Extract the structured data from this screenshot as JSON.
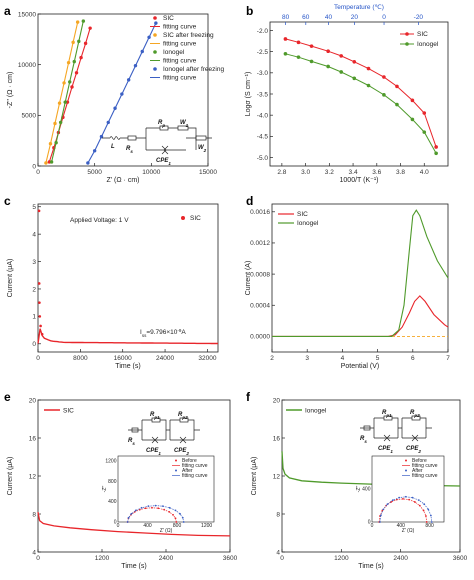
{
  "colors": {
    "red": "#e8262b",
    "green": "#4f9a2b",
    "orange": "#f5a623",
    "blue": "#3b5fc4",
    "green_light": "#6fbf3a"
  },
  "chart_data": [
    {
      "id": "a",
      "panel_label": "a",
      "type": "scatter",
      "xlabel": "Z' (Ω · cm)",
      "ylabel": "-Z'' (Ω · cm)",
      "xlim": [
        0,
        15000
      ],
      "ylim": [
        0,
        15000
      ],
      "x_ticks": [
        "0",
        "5000",
        "10000",
        "15000"
      ],
      "y_ticks": [
        "0",
        "5000",
        "10000",
        "15000"
      ],
      "legend": [
        "SIC",
        "fitting curve",
        "SIC after freezing",
        "fitting curve",
        "Ionogel",
        "fitting curve",
        "Ionogel after freezing",
        "fitting curve"
      ],
      "series": [
        {
          "name": "SIC",
          "color": "#e8262b",
          "points": [
            [
              1000,
              400
            ],
            [
              1400,
              1800
            ],
            [
              1800,
              3300
            ],
            [
              2200,
              4800
            ],
            [
              2600,
              6300
            ],
            [
              3000,
              7800
            ],
            [
              3400,
              9200
            ],
            [
              3800,
              10700
            ],
            [
              4200,
              12100
            ],
            [
              4600,
              13600
            ]
          ]
        },
        {
          "name": "SIC after freezing",
          "color": "#f5a623",
          "points": [
            [
              700,
              300
            ],
            [
              1100,
              2200
            ],
            [
              1500,
              4200
            ],
            [
              1900,
              6200
            ],
            [
              2300,
              8200
            ],
            [
              2700,
              10200
            ],
            [
              3100,
              12200
            ],
            [
              3500,
              14200
            ]
          ]
        },
        {
          "name": "Ionogel",
          "color": "#4f9a2b",
          "points": [
            [
              1200,
              400
            ],
            [
              1600,
              2300
            ],
            [
              2000,
              4300
            ],
            [
              2400,
              6300
            ],
            [
              2800,
              8300
            ],
            [
              3200,
              10300
            ],
            [
              3600,
              12300
            ],
            [
              4000,
              14300
            ]
          ]
        },
        {
          "name": "Ionogel after freezing",
          "color": "#3b5fc4",
          "points": [
            [
              4400,
              300
            ],
            [
              5000,
              1500
            ],
            [
              5600,
              2900
            ],
            [
              6200,
              4300
            ],
            [
              6800,
              5700
            ],
            [
              7400,
              7100
            ],
            [
              8000,
              8500
            ],
            [
              8600,
              9900
            ],
            [
              9200,
              11300
            ],
            [
              9800,
              12700
            ],
            [
              10400,
              14100
            ]
          ]
        }
      ],
      "circuit_labels": {
        "L": "L",
        "Rs": "R",
        "Rs_sub": "s",
        "Rp": "R",
        "Rp_sub": "p",
        "W1": "W",
        "W1_sub": "1",
        "W2": "W",
        "W2_sub": "2",
        "CPE": "CPE",
        "CPE_sub": "1"
      }
    },
    {
      "id": "b",
      "panel_label": "b",
      "type": "line",
      "xlabel": "1000/T (K⁻¹)",
      "ylabel": "Logσ (S cm⁻¹)",
      "top_label": "Temperature (℃)",
      "xlim": [
        2.7,
        4.2
      ],
      "ylim": [
        -5.2,
        -1.8
      ],
      "x_ticks": [
        "2.8",
        "3.0",
        "3.2",
        "3.4",
        "3.6",
        "3.8",
        "4.0"
      ],
      "y_ticks": [
        "-2.0",
        "-2.5",
        "-3.0",
        "-3.5",
        "-4.0",
        "-4.5",
        "-5.0"
      ],
      "top_ticks": [
        "80",
        "60",
        "40",
        "20",
        "0",
        "-20"
      ],
      "legend": [
        "SIC",
        "Ionogel"
      ],
      "series": [
        {
          "name": "SIC",
          "color": "#e8262b",
          "points": [
            [
              2.83,
              -2.2
            ],
            [
              2.94,
              -2.28
            ],
            [
              3.05,
              -2.37
            ],
            [
              3.19,
              -2.49
            ],
            [
              3.3,
              -2.6
            ],
            [
              3.41,
              -2.74
            ],
            [
              3.53,
              -2.9
            ],
            [
              3.66,
              -3.1
            ],
            [
              3.77,
              -3.32
            ],
            [
              3.9,
              -3.65
            ],
            [
              4.0,
              -3.95
            ],
            [
              4.1,
              -4.75
            ]
          ]
        },
        {
          "name": "Ionogel",
          "color": "#4f9a2b",
          "points": [
            [
              2.83,
              -2.55
            ],
            [
              2.94,
              -2.63
            ],
            [
              3.05,
              -2.73
            ],
            [
              3.19,
              -2.85
            ],
            [
              3.3,
              -2.98
            ],
            [
              3.41,
              -3.13
            ],
            [
              3.53,
              -3.3
            ],
            [
              3.66,
              -3.52
            ],
            [
              3.77,
              -3.75
            ],
            [
              3.9,
              -4.1
            ],
            [
              4.0,
              -4.4
            ],
            [
              4.1,
              -4.9
            ]
          ]
        }
      ]
    },
    {
      "id": "c",
      "panel_label": "c",
      "type": "scatter",
      "xlabel": "Time (s)",
      "ylabel": "Current (μA)",
      "xlim": [
        0,
        34000
      ],
      "ylim": [
        -0.3,
        5.1
      ],
      "x_ticks": [
        "0",
        "8000",
        "16000",
        "24000",
        "32000"
      ],
      "y_ticks": [
        "0",
        "1",
        "2",
        "3",
        "4",
        "5"
      ],
      "annotation": "Applied Voltage: 1 V",
      "legend": [
        "SIC"
      ],
      "iss_label": "I",
      "iss_sub": "ss",
      "iss_value": "=9.796×10",
      "iss_exp": "-9",
      "iss_unit": "A",
      "points": [
        [
          10,
          4.85
        ],
        [
          40,
          2.2
        ],
        [
          80,
          1.5
        ],
        [
          150,
          1.0
        ],
        [
          300,
          0.65
        ],
        [
          600,
          0.35
        ],
        [
          1200,
          0.2
        ],
        [
          2500,
          0.1
        ],
        [
          5000,
          0.05
        ],
        [
          34000,
          0.01
        ]
      ]
    },
    {
      "id": "d",
      "panel_label": "d",
      "type": "line",
      "xlabel": "Potential (V)",
      "ylabel": "Current (A)",
      "xlim": [
        2,
        7
      ],
      "ylim": [
        -0.0002,
        0.0017
      ],
      "x_ticks": [
        "2",
        "3",
        "4",
        "5",
        "6",
        "7"
      ],
      "y_ticks": [
        "0.0000",
        "0.0004",
        "0.0008",
        "0.0012",
        "0.0016"
      ],
      "legend": [
        "SIC",
        "Ionogel"
      ],
      "series": [
        {
          "name": "SIC",
          "color": "#e8262b",
          "points": [
            [
              2,
              0
            ],
            [
              5.3,
              0
            ],
            [
              5.5,
              2e-05
            ],
            [
              5.7,
              0.00012
            ],
            [
              5.9,
              0.0003
            ],
            [
              6.05,
              0.00045
            ],
            [
              6.2,
              0.00052
            ],
            [
              6.35,
              0.00045
            ],
            [
              6.6,
              0.00028
            ],
            [
              6.9,
              0.00015
            ],
            [
              7,
              0.00012
            ]
          ]
        },
        {
          "name": "Ionogel",
          "color": "#4f9a2b",
          "points": [
            [
              2,
              0
            ],
            [
              5.4,
              0
            ],
            [
              5.6,
              8e-05
            ],
            [
              5.75,
              0.0004
            ],
            [
              5.9,
              0.0011
            ],
            [
              6.0,
              0.00155
            ],
            [
              6.1,
              0.00162
            ],
            [
              6.2,
              0.00155
            ],
            [
              6.4,
              0.00128
            ],
            [
              6.7,
              0.00097
            ],
            [
              7,
              0.00075
            ]
          ]
        }
      ]
    },
    {
      "id": "e",
      "panel_label": "e",
      "type": "line",
      "xlabel": "Time (s)",
      "ylabel": "Current (μA)",
      "xlim": [
        0,
        3600
      ],
      "ylim": [
        4,
        20
      ],
      "x_ticks": [
        "0",
        "1200",
        "2400",
        "3600"
      ],
      "y_ticks": [
        "4",
        "8",
        "12",
        "16",
        "20"
      ],
      "legend": [
        "SIC"
      ],
      "series": [
        {
          "name": "SIC",
          "color": "#e8262b",
          "points": [
            [
              0,
              8.2
            ],
            [
              30,
              7.3
            ],
            [
              100,
              7.0
            ],
            [
              300,
              6.75
            ],
            [
              600,
              6.55
            ],
            [
              1000,
              6.35
            ],
            [
              1500,
              6.15
            ],
            [
              2000,
              6.0
            ],
            [
              2500,
              5.85
            ],
            [
              3000,
              5.75
            ],
            [
              3600,
              5.7
            ]
          ]
        }
      ],
      "circuit": {
        "Rs": "R",
        "Rs_sub": "s",
        "Rp1": "R",
        "Rp1_sub": "p1",
        "Rp2": "R",
        "Rp2_sub": "p2",
        "CPE1": "CPE",
        "CPE1_sub": "1",
        "CPE2": "CPE",
        "CPE2_sub": "2"
      },
      "inset": {
        "xlabel": "Z' (Ω)",
        "ylabel": "-Z''",
        "x_ticks": [
          "0",
          "400",
          "800",
          "1200"
        ],
        "y_ticks": [
          "0",
          "400",
          "800",
          "1200"
        ],
        "legend": [
          "Before",
          "fitting curve",
          "After",
          "fitting curve"
        ],
        "series": [
          {
            "name": "Before",
            "color": "#e8262b",
            "center": 460,
            "radius": 330
          },
          {
            "name": "After",
            "color": "#3b5fc4",
            "center": 510,
            "radius": 380
          }
        ]
      }
    },
    {
      "id": "f",
      "panel_label": "f",
      "type": "line",
      "xlabel": "Time (s)",
      "ylabel": "Current (μA)",
      "xlim": [
        0,
        3600
      ],
      "ylim": [
        4,
        20
      ],
      "x_ticks": [
        "0",
        "1200",
        "2400",
        "3600"
      ],
      "y_ticks": [
        "4",
        "8",
        "12",
        "16",
        "20"
      ],
      "legend": [
        "Ionogel"
      ],
      "series": [
        {
          "name": "Ionogel",
          "color": "#4f9a2b",
          "points": [
            [
              0,
              14.6
            ],
            [
              20,
              12.8
            ],
            [
              60,
              12.2
            ],
            [
              150,
              11.8
            ],
            [
              400,
              11.5
            ],
            [
              800,
              11.35
            ],
            [
              1200,
              11.25
            ],
            [
              1800,
              11.15
            ],
            [
              2400,
              11.05
            ],
            [
              3000,
              11.0
            ],
            [
              3600,
              10.95
            ]
          ]
        }
      ],
      "circuit": {
        "Rs": "R",
        "Rs_sub": "s",
        "Rp1": "R",
        "Rp1_sub": "p1",
        "Rp2": "R",
        "Rp2_sub": "p2",
        "CPE1": "CPE",
        "CPE1_sub": "1",
        "CPE2": "CPE",
        "CPE2_sub": "2"
      },
      "inset": {
        "xlabel": "Z' (Ω)",
        "ylabel": "-Z''",
        "x_ticks": [
          "0",
          "400",
          "800"
        ],
        "y_ticks": [
          "0",
          "400"
        ],
        "legend": [
          "Before",
          "fitting curve",
          "After",
          "fitting curve"
        ],
        "series": [
          {
            "name": "Before",
            "color": "#e8262b",
            "center": 430,
            "radius": 330
          },
          {
            "name": "After",
            "color": "#3b5fc4",
            "center": 470,
            "radius": 360
          }
        ]
      }
    }
  ]
}
